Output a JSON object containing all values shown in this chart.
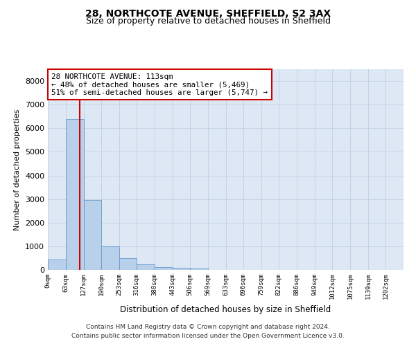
{
  "title1": "28, NORTHCOTE AVENUE, SHEFFIELD, S2 3AX",
  "title2": "Size of property relative to detached houses in Sheffield",
  "xlabel": "Distribution of detached houses by size in Sheffield",
  "ylabel": "Number of detached properties",
  "footer1": "Contains HM Land Registry data © Crown copyright and database right 2024.",
  "footer2": "Contains public sector information licensed under the Open Government Licence v3.0.",
  "annotation_line1": "28 NORTHCOTE AVENUE: 113sqm",
  "annotation_line2": "← 48% of detached houses are smaller (5,469)",
  "annotation_line3": "51% of semi-detached houses are larger (5,747) →",
  "bar_edges": [
    0,
    63,
    127,
    190,
    253,
    316,
    380,
    443,
    506,
    569,
    633,
    696,
    759,
    822,
    886,
    949,
    1012,
    1075,
    1139,
    1202,
    1265
  ],
  "bar_heights": [
    430,
    6380,
    2950,
    1000,
    500,
    220,
    130,
    100,
    50,
    0,
    0,
    0,
    0,
    0,
    0,
    0,
    0,
    0,
    0,
    0
  ],
  "bar_color": "#b8d0ea",
  "bar_edge_color": "#6699cc",
  "vline_x": 113,
  "vline_color": "#cc0000",
  "grid_color": "#c0d4e8",
  "bg_color": "#dde8f4",
  "box_color": "#cc0000",
  "ylim": [
    0,
    8500
  ],
  "yticks": [
    0,
    1000,
    2000,
    3000,
    4000,
    5000,
    6000,
    7000,
    8000
  ]
}
